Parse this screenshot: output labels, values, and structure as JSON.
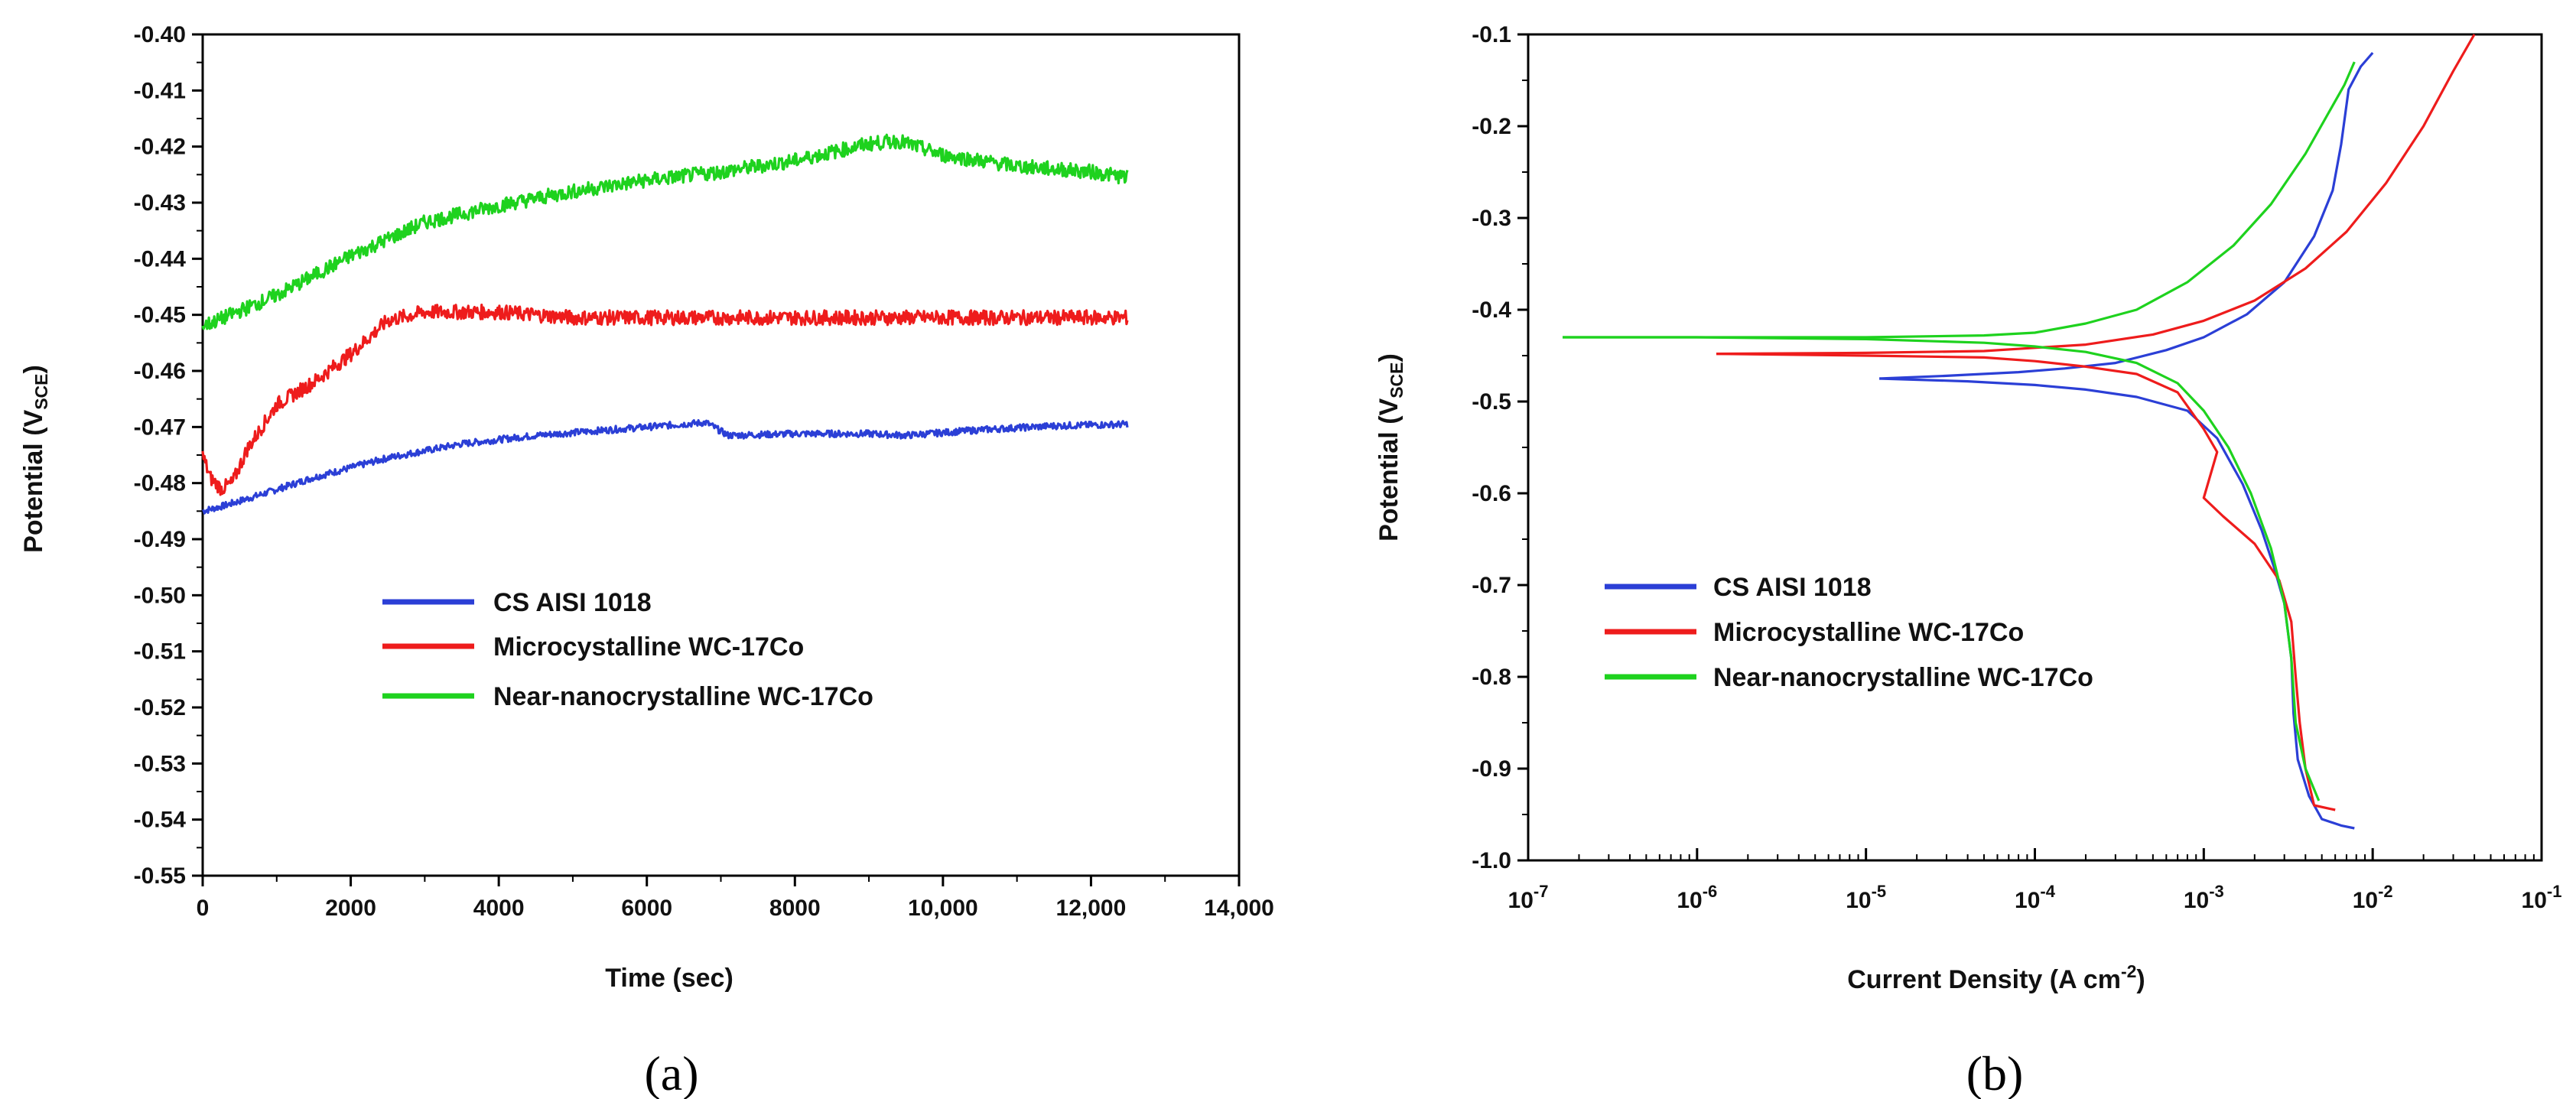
{
  "chart_data": [
    {
      "type": "line",
      "panel_label": "(a)",
      "xlabel": "Time (sec)",
      "ylabel_main": "Potential (V",
      "ylabel_sub": "SCE",
      "ylabel_close": ")",
      "xlim": [
        0,
        14000
      ],
      "ylim": [
        -0.55,
        -0.4
      ],
      "grid": false,
      "xtick_values": [
        0,
        2000,
        4000,
        6000,
        8000,
        10000,
        12000,
        14000
      ],
      "xtick_labels": [
        "0",
        "2000",
        "4000",
        "6000",
        "8000",
        "10,000",
        "12,000",
        "14,000"
      ],
      "ytick_values": [
        -0.4,
        -0.41,
        -0.42,
        -0.43,
        -0.44,
        -0.45,
        -0.46,
        -0.47,
        -0.48,
        -0.49,
        -0.5,
        -0.51,
        -0.52,
        -0.53,
        -0.54,
        -0.55
      ],
      "ytick_labels": [
        "-0.40",
        "-0.41",
        "-0.42",
        "-0.43",
        "-0.44",
        "-0.45",
        "-0.46",
        "-0.47",
        "-0.48",
        "-0.49",
        "-0.50",
        "-0.51",
        "-0.52",
        "-0.53",
        "-0.54",
        "-0.55"
      ],
      "legend_position": "lower-center",
      "series": [
        {
          "name": "CS AISI 1018",
          "color": "#2b3fd6",
          "noise": 0.0006,
          "x": [
            0,
            300,
            800,
            1500,
            2500,
            3500,
            4500,
            5500,
            6500,
            6800,
            7100,
            8000,
            9000,
            9500,
            10500,
            11500,
            12500
          ],
          "y": [
            -0.485,
            -0.484,
            -0.482,
            -0.479,
            -0.4755,
            -0.473,
            -0.4715,
            -0.4705,
            -0.4695,
            -0.4692,
            -0.4715,
            -0.4712,
            -0.4712,
            -0.4715,
            -0.4705,
            -0.4698,
            -0.4695
          ]
        },
        {
          "name": "Microcystalline WC-17Co",
          "color": "#ee1c1c",
          "noise": 0.0013,
          "x": [
            0,
            100,
            250,
            400,
            600,
            1000,
            1500,
            2000,
            2500,
            3000,
            4000,
            5000,
            6000,
            7000,
            8000,
            9000,
            10000,
            11000,
            12000,
            12500
          ],
          "y": [
            -0.475,
            -0.479,
            -0.481,
            -0.48,
            -0.474,
            -0.466,
            -0.462,
            -0.457,
            -0.451,
            -0.4495,
            -0.4495,
            -0.4505,
            -0.4505,
            -0.4505,
            -0.4505,
            -0.4505,
            -0.4505,
            -0.4505,
            -0.4505,
            -0.4505
          ]
        },
        {
          "name": "Near-nanocrystalline WC-17Co",
          "color": "#1ed21e",
          "noise": 0.0013,
          "x": [
            0,
            200,
            1000,
            2000,
            3000,
            4000,
            5000,
            6000,
            7000,
            8000,
            9000,
            9400,
            10000,
            11000,
            12000,
            12500
          ],
          "y": [
            -0.452,
            -0.451,
            -0.4465,
            -0.4395,
            -0.4335,
            -0.4305,
            -0.428,
            -0.426,
            -0.4245,
            -0.4225,
            -0.4195,
            -0.419,
            -0.4215,
            -0.4235,
            -0.4245,
            -0.4255
          ]
        }
      ]
    },
    {
      "type": "line",
      "panel_label": "(b)",
      "xlabel_main": "Current Density (A cm",
      "xlabel_sup": "-2",
      "xlabel_close": ")",
      "ylabel_main": "Potential (V",
      "ylabel_sub": "SCE",
      "ylabel_close": ")",
      "xscale": "log",
      "xlim": [
        1e-07,
        0.1
      ],
      "ylim": [
        -1.0,
        -0.1
      ],
      "grid": false,
      "xtick_exponents": [
        -7,
        -6,
        -5,
        -4,
        -3,
        -2,
        -1
      ],
      "xtick_base": "10",
      "ytick_values": [
        -0.1,
        -0.2,
        -0.3,
        -0.4,
        -0.5,
        -0.6,
        -0.7,
        -0.8,
        -0.9,
        -1.0
      ],
      "ytick_labels": [
        "-0.1",
        "-0.2",
        "-0.3",
        "-0.4",
        "-0.5",
        "-0.6",
        "-0.7",
        "-0.8",
        "-0.9",
        "-1.0"
      ],
      "legend_position": "lower-left",
      "series": [
        {
          "name": "CS AISI 1018",
          "color": "#2b3fd6",
          "anodic_x": [
            1.2e-05,
            3e-05,
            8e-05,
            0.00015,
            0.0003,
            0.0006,
            0.001,
            0.0018,
            0.003,
            0.0045,
            0.0058,
            0.0065,
            0.0072,
            0.0085,
            0.01
          ],
          "anodic_y": [
            -0.475,
            -0.472,
            -0.468,
            -0.464,
            -0.458,
            -0.444,
            -0.43,
            -0.405,
            -0.37,
            -0.32,
            -0.27,
            -0.22,
            -0.16,
            -0.135,
            -0.12
          ],
          "cathodic_x": [
            1.2e-05,
            4e-05,
            0.0001,
            0.0002,
            0.0004,
            0.0008,
            0.0012,
            0.0017,
            0.0022,
            0.0026,
            0.003,
            0.0033,
            0.0034,
            0.0036,
            0.0042,
            0.005,
            0.0065,
            0.0078
          ],
          "cathodic_y": [
            -0.475,
            -0.478,
            -0.482,
            -0.487,
            -0.495,
            -0.51,
            -0.54,
            -0.59,
            -0.64,
            -0.68,
            -0.72,
            -0.78,
            -0.84,
            -0.89,
            -0.93,
            -0.955,
            -0.962,
            -0.965
          ]
        },
        {
          "name": "Microcystalline WC-17Co",
          "color": "#ee1c1c",
          "anodic_x": [
            1.3e-06,
            1e-05,
            5e-05,
            0.0002,
            0.0005,
            0.001,
            0.002,
            0.004,
            0.007,
            0.012,
            0.02,
            0.03,
            0.04
          ],
          "anodic_y": [
            -0.448,
            -0.447,
            -0.445,
            -0.438,
            -0.427,
            -0.412,
            -0.39,
            -0.355,
            -0.315,
            -0.262,
            -0.2,
            -0.14,
            -0.1
          ],
          "cathodic_x": [
            1.3e-06,
            1e-05,
            5e-05,
            0.0001,
            0.0002,
            0.0004,
            0.0007,
            0.001,
            0.0012,
            0.001,
            0.0013,
            0.002,
            0.0028,
            0.0033,
            0.0035,
            0.0037,
            0.004,
            0.0045,
            0.006
          ],
          "cathodic_y": [
            -0.448,
            -0.45,
            -0.452,
            -0.456,
            -0.462,
            -0.47,
            -0.49,
            -0.53,
            -0.555,
            -0.605,
            -0.625,
            -0.655,
            -0.695,
            -0.74,
            -0.8,
            -0.85,
            -0.9,
            -0.94,
            -0.945
          ]
        },
        {
          "name": "Near-nanocrystalline WC-17Co",
          "color": "#1ed21e",
          "anodic_x": [
            1.6e-07,
            1e-06,
            1e-05,
            5e-05,
            0.0001,
            0.0002,
            0.0004,
            0.0008,
            0.0015,
            0.0025,
            0.004,
            0.0055,
            0.0068,
            0.0078
          ],
          "anodic_y": [
            -0.43,
            -0.43,
            -0.43,
            -0.428,
            -0.425,
            -0.415,
            -0.4,
            -0.37,
            -0.33,
            -0.285,
            -0.23,
            -0.185,
            -0.155,
            -0.13
          ],
          "cathodic_x": [
            1.6e-07,
            1e-06,
            1e-05,
            5e-05,
            0.0001,
            0.0002,
            0.0004,
            0.0007,
            0.001,
            0.0014,
            0.0019,
            0.0025,
            0.003,
            0.0033,
            0.0035,
            0.004,
            0.0048
          ],
          "cathodic_y": [
            -0.43,
            -0.43,
            -0.432,
            -0.436,
            -0.44,
            -0.446,
            -0.458,
            -0.48,
            -0.51,
            -0.55,
            -0.6,
            -0.66,
            -0.72,
            -0.78,
            -0.85,
            -0.9,
            -0.935
          ]
        }
      ]
    }
  ]
}
